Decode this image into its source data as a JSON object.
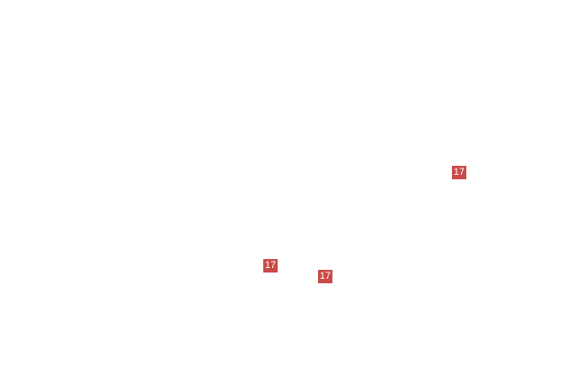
{
  "canvas": {
    "background_color": "#ffffff"
  },
  "callouts": {
    "badge_color": "#c94b47",
    "text_color": "#ffffff",
    "items": [
      {
        "label": "17"
      },
      {
        "label": "17"
      },
      {
        "label": "17"
      }
    ]
  }
}
